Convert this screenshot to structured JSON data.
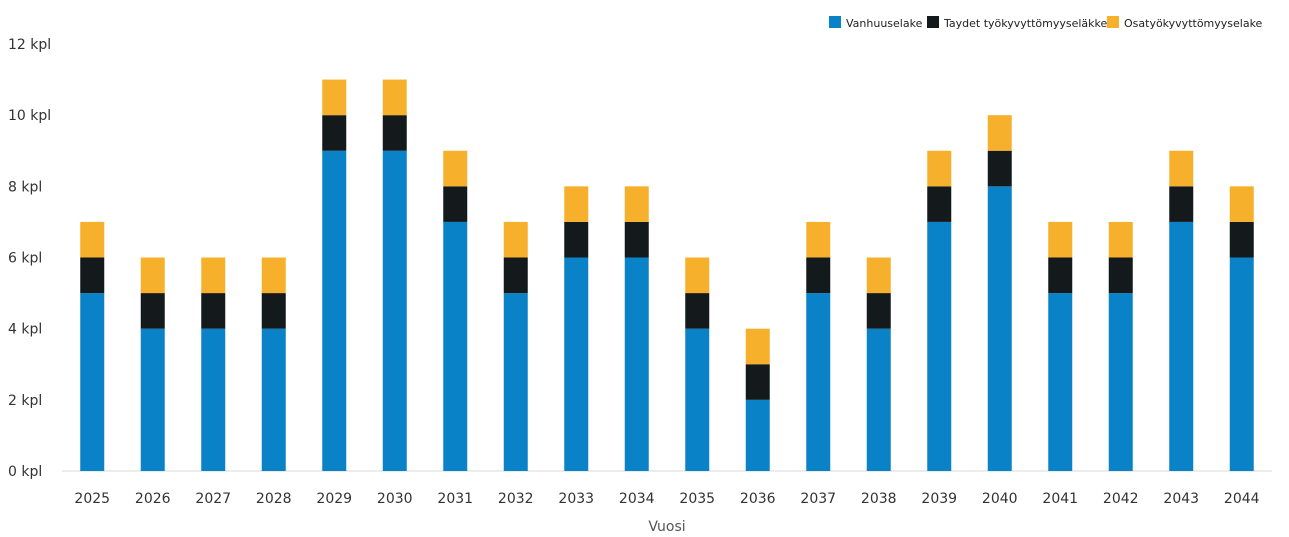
{
  "chart_data": {
    "type": "bar",
    "stacked": true,
    "title": "",
    "xlabel": "Vuosi",
    "ylabel": "",
    "ylim": [
      0,
      12
    ],
    "y_ticks": [
      {
        "value": 0,
        "label": "0 kpl"
      },
      {
        "value": 2,
        "label": "2 kpl"
      },
      {
        "value": 4,
        "label": "4 kpl"
      },
      {
        "value": 6,
        "label": "6 kpl"
      },
      {
        "value": 8,
        "label": "8 kpl"
      },
      {
        "value": 10,
        "label": "10 kpl"
      },
      {
        "value": 12,
        "label": "12 kpl"
      }
    ],
    "grid": false,
    "legend_position": "top-right",
    "categories": [
      "2025",
      "2026",
      "2027",
      "2028",
      "2029",
      "2030",
      "2031",
      "2032",
      "2033",
      "2034",
      "2035",
      "2036",
      "2037",
      "2038",
      "2039",
      "2040",
      "2041",
      "2042",
      "2043",
      "2044"
    ],
    "series": [
      {
        "name": "Vanhuuselake",
        "color": "#0a82c8",
        "values": [
          5,
          4,
          4,
          4,
          9,
          9,
          7,
          5,
          6,
          6,
          4,
          2,
          5,
          4,
          7,
          8,
          5,
          5,
          7,
          6
        ]
      },
      {
        "name": "Taydet työkyvyttömyyseläkkeet",
        "color": "#14191c",
        "values": [
          1,
          1,
          1,
          1,
          1,
          1,
          1,
          1,
          1,
          1,
          1,
          1,
          1,
          1,
          1,
          1,
          1,
          1,
          1,
          1
        ]
      },
      {
        "name": "Osatyökyvyttömyyselake",
        "color": "#f6b02c",
        "values": [
          1,
          1,
          1,
          1,
          1,
          1,
          1,
          1,
          1,
          1,
          1,
          1,
          1,
          1,
          1,
          1,
          1,
          1,
          1,
          1
        ]
      }
    ]
  }
}
